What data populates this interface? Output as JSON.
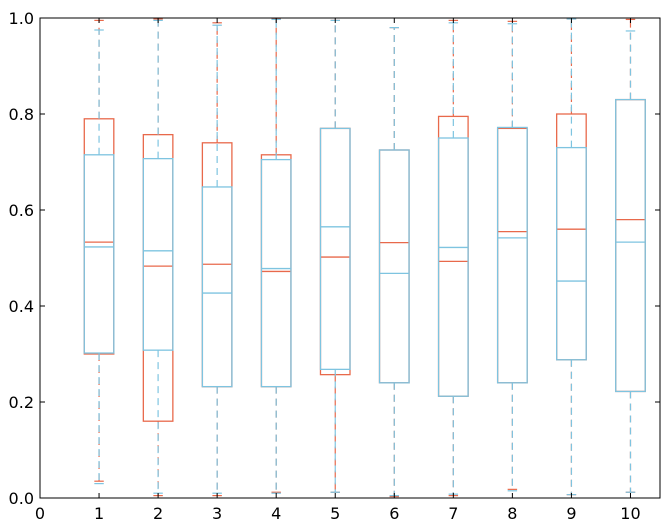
{
  "chart_data": {
    "type": "box",
    "title": "",
    "xlabel": "",
    "ylabel": "",
    "xlim": [
      0,
      10.5
    ],
    "ylim": [
      0.0,
      1.0
    ],
    "xticks": [
      "0",
      "1",
      "2",
      "3",
      "4",
      "5",
      "6",
      "7",
      "8",
      "9",
      "10"
    ],
    "yticks": [
      "0.0",
      "0.2",
      "0.4",
      "0.6",
      "0.8",
      "1.0"
    ],
    "positions": [
      1,
      2,
      3,
      4,
      5,
      6,
      7,
      8,
      9,
      10
    ],
    "grid": false,
    "series": [
      {
        "color": "#e8694b",
        "boxes": [
          {
            "whislo": 0.035,
            "q1": 0.3,
            "med": 0.533,
            "q3": 0.79,
            "whishi": 0.995
          },
          {
            "whislo": 0.005,
            "q1": 0.16,
            "med": 0.483,
            "q3": 0.757,
            "whishi": 0.998
          },
          {
            "whislo": 0.005,
            "q1": 0.232,
            "med": 0.487,
            "q3": 0.74,
            "whishi": 0.99
          },
          {
            "whislo": 0.012,
            "q1": 0.232,
            "med": 0.472,
            "q3": 0.715,
            "whishi": 0.998
          },
          {
            "whislo": 0.012,
            "q1": 0.257,
            "med": 0.502,
            "q3": 0.77,
            "whishi": 0.995
          },
          {
            "whislo": 0.003,
            "q1": 0.24,
            "med": 0.532,
            "q3": 0.725,
            "whishi": 0.98
          },
          {
            "whislo": 0.005,
            "q1": 0.212,
            "med": 0.493,
            "q3": 0.795,
            "whishi": 0.995
          },
          {
            "whislo": 0.018,
            "q1": 0.24,
            "med": 0.555,
            "q3": 0.77,
            "whishi": 0.993
          },
          {
            "whislo": 0.007,
            "q1": 0.288,
            "med": 0.56,
            "q3": 0.8,
            "whishi": 0.998
          },
          {
            "whislo": 0.012,
            "q1": 0.222,
            "med": 0.58,
            "q3": 0.83,
            "whishi": 0.997
          }
        ]
      },
      {
        "color": "#7ec4e0",
        "boxes": [
          {
            "whislo": 0.03,
            "q1": 0.302,
            "med": 0.523,
            "q3": 0.715,
            "whishi": 0.975
          },
          {
            "whislo": 0.01,
            "q1": 0.308,
            "med": 0.515,
            "q3": 0.707,
            "whishi": 0.995
          },
          {
            "whislo": 0.01,
            "q1": 0.232,
            "med": 0.427,
            "q3": 0.648,
            "whishi": 0.985
          },
          {
            "whislo": 0.01,
            "q1": 0.232,
            "med": 0.478,
            "q3": 0.705,
            "whishi": 0.997
          },
          {
            "whislo": 0.012,
            "q1": 0.268,
            "med": 0.565,
            "q3": 0.77,
            "whishi": 0.995
          },
          {
            "whislo": 0.005,
            "q1": 0.24,
            "med": 0.468,
            "q3": 0.725,
            "whishi": 0.98
          },
          {
            "whislo": 0.008,
            "q1": 0.212,
            "med": 0.522,
            "q3": 0.75,
            "whishi": 0.99
          },
          {
            "whislo": 0.015,
            "q1": 0.24,
            "med": 0.542,
            "q3": 0.772,
            "whishi": 0.988
          },
          {
            "whislo": 0.007,
            "q1": 0.288,
            "med": 0.452,
            "q3": 0.73,
            "whishi": 0.998
          },
          {
            "whislo": 0.012,
            "q1": 0.222,
            "med": 0.533,
            "q3": 0.83,
            "whishi": 0.973
          }
        ]
      }
    ]
  }
}
